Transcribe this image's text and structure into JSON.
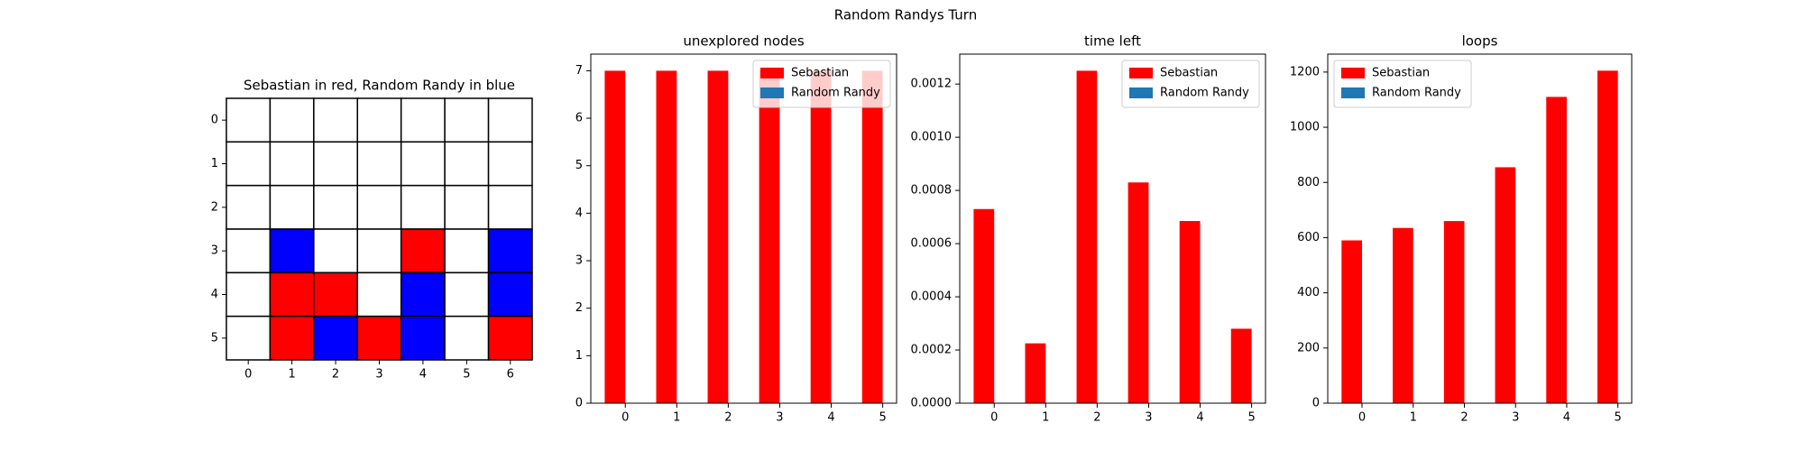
{
  "title": "Random Randys Turn",
  "chart_data": [
    {
      "type": "heatmap",
      "title": "Sebastian in red, Random Randy in blue",
      "xlim": [
        -0.5,
        6.5
      ],
      "ylim": [
        5.5,
        -0.5
      ],
      "xticks": [
        0,
        1,
        2,
        3,
        4,
        5,
        6
      ],
      "yticks": [
        0,
        1,
        2,
        3,
        4,
        5
      ],
      "colors": [
        "#ffffff",
        "#ff0000",
        "#0000ff"
      ],
      "z": [
        [
          0,
          0,
          0,
          0,
          0,
          0,
          0
        ],
        [
          0,
          0,
          0,
          0,
          0,
          0,
          0
        ],
        [
          0,
          0,
          0,
          0,
          0,
          0,
          0
        ],
        [
          0,
          2,
          0,
          0,
          1,
          0,
          2
        ],
        [
          0,
          1,
          1,
          0,
          2,
          0,
          2
        ],
        [
          0,
          1,
          2,
          1,
          2,
          0,
          1
        ]
      ]
    },
    {
      "type": "bar",
      "title": "unexplored nodes",
      "legend": "upper right",
      "categories": [
        0,
        1,
        2,
        3,
        4,
        5
      ],
      "series": [
        {
          "name": "Sebastian",
          "color": "#ff0000",
          "values": [
            7,
            7,
            7,
            7,
            7,
            7
          ]
        },
        {
          "name": "Random Randy",
          "color": "#1f77b4",
          "values": [
            null,
            null,
            null,
            null,
            null,
            null
          ]
        }
      ],
      "xlim": [
        -0.67,
        5.27
      ],
      "xticks": [
        0,
        1,
        2,
        3,
        4,
        5
      ],
      "ylim": [
        0,
        7.35
      ],
      "yticks": [
        0,
        1,
        2,
        3,
        4,
        5,
        6,
        7
      ]
    },
    {
      "type": "bar",
      "title": "time left",
      "legend": "upper right",
      "categories": [
        0,
        1,
        2,
        3,
        4,
        5
      ],
      "series": [
        {
          "name": "Sebastian",
          "color": "#ff0000",
          "values": [
            0.00073,
            0.000225,
            0.00125,
            0.00083,
            0.000685,
            0.00028
          ]
        },
        {
          "name": "Random Randy",
          "color": "#1f77b4",
          "values": [
            null,
            null,
            null,
            null,
            null,
            null
          ]
        }
      ],
      "xlim": [
        -0.67,
        5.27
      ],
      "xticks": [
        0,
        1,
        2,
        3,
        4,
        5
      ],
      "ylim": [
        0,
        0.0013125
      ],
      "yticks": [
        {
          "value": 0,
          "label": "0.0000"
        },
        {
          "value": 0.0002,
          "label": "0.0002"
        },
        {
          "value": 0.0004,
          "label": "0.0004"
        },
        {
          "value": 0.0006,
          "label": "0.0006"
        },
        {
          "value": 0.0008,
          "label": "0.0008"
        },
        {
          "value": 0.001,
          "label": "0.0010"
        },
        {
          "value": 0.0012,
          "label": "0.0012"
        }
      ]
    },
    {
      "type": "bar",
      "title": "loops",
      "legend": "upper left",
      "categories": [
        0,
        1,
        2,
        3,
        4,
        5
      ],
      "series": [
        {
          "name": "Sebastian",
          "color": "#ff0000",
          "values": [
            590,
            635,
            660,
            855,
            1110,
            1205
          ]
        },
        {
          "name": "Random Randy",
          "color": "#1f77b4",
          "values": [
            null,
            null,
            null,
            null,
            null,
            null
          ]
        }
      ],
      "xlim": [
        -0.67,
        5.27
      ],
      "xticks": [
        0,
        1,
        2,
        3,
        4,
        5
      ],
      "ylim": [
        0,
        1265
      ],
      "yticks": [
        0,
        200,
        400,
        600,
        800,
        1000,
        1200
      ]
    }
  ]
}
